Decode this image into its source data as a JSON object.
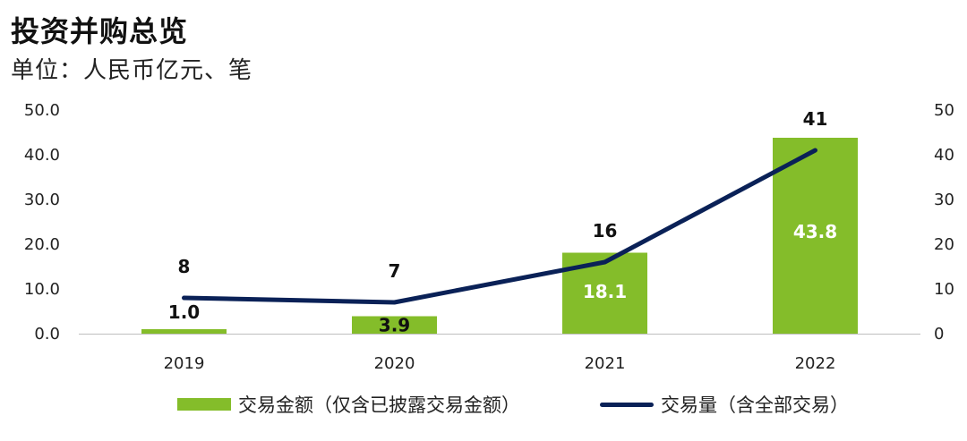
{
  "title": "投资并购总览",
  "subtitle": "单位：人民币亿元、笔",
  "colors": {
    "bar": "#84BD2A",
    "line": "#0A2157",
    "axis": "#BFBFBF",
    "bar_label_light": "#FFFFFF",
    "bar_label_dark": "#111111"
  },
  "chart_data": {
    "type": "bar+line",
    "categories": [
      "2019",
      "2020",
      "2021",
      "2022"
    ],
    "series": [
      {
        "name": "交易金额（仅含已披露交易金额）",
        "type": "bar",
        "axis": "left",
        "values": [
          1.0,
          3.9,
          18.1,
          43.8
        ],
        "labels": [
          "1.0",
          "3.9",
          "18.1",
          "43.8"
        ]
      },
      {
        "name": "交易量（含全部交易）",
        "type": "line",
        "axis": "right",
        "values": [
          8,
          7,
          16,
          41
        ],
        "labels": [
          "8",
          "7",
          "16",
          "41"
        ]
      }
    ],
    "y_left": {
      "ylim": [
        0,
        50
      ],
      "ticks": [
        "0.0",
        "10.0",
        "20.0",
        "30.0",
        "40.0",
        "50.0"
      ]
    },
    "y_right": {
      "ylim": [
        0,
        50
      ],
      "ticks": [
        "0",
        "10",
        "20",
        "30",
        "40",
        "50"
      ]
    },
    "grid": false,
    "legend_position": "bottom"
  }
}
